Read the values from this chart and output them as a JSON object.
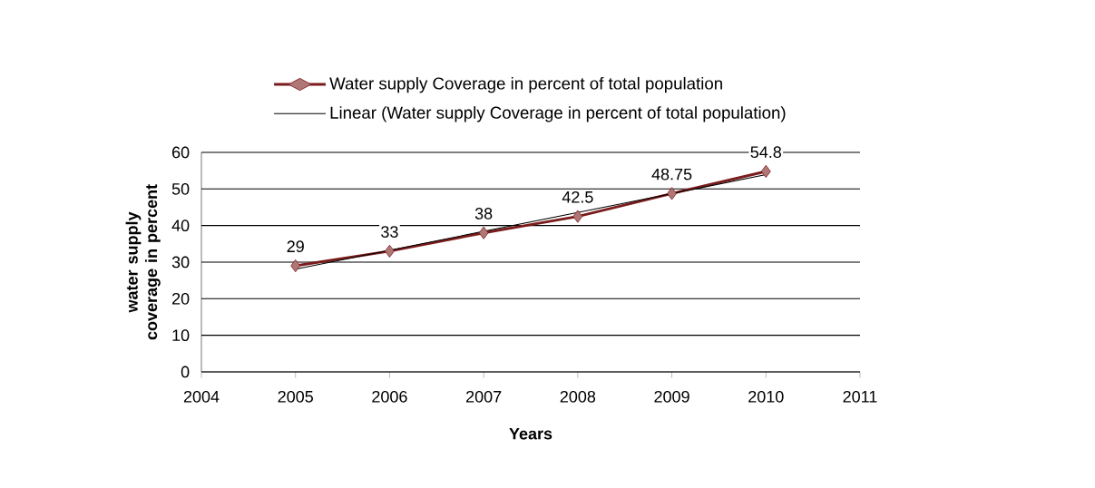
{
  "chart_data": {
    "type": "line",
    "xlabel": "Years",
    "ylabel": "water supply  coverage in percent",
    "x": [
      2005,
      2006,
      2007,
      2008,
      2009,
      2010
    ],
    "series": [
      {
        "name": "Water supply Coverage in percent of  total population",
        "color": "#7b1c1c",
        "marker": "diamond",
        "values": [
          29,
          33,
          38,
          42.5,
          48.75,
          54.8
        ],
        "value_labels": [
          "29",
          "33",
          "38",
          "42.5",
          "48.75",
          "54.8"
        ]
      },
      {
        "name": "Linear (Water supply Coverage in percent of  total population)",
        "type": "line",
        "color": "#000000",
        "marker": "none",
        "x": [
          2005,
          2010
        ],
        "values": [
          28.1,
          53.9
        ]
      }
    ],
    "xlim": [
      2004,
      2011
    ],
    "xticks": [
      2004,
      2005,
      2006,
      2007,
      2008,
      2009,
      2010,
      2011
    ],
    "ylim": [
      0,
      60
    ],
    "yticks": [
      0,
      10,
      20,
      30,
      40,
      50,
      60
    ],
    "grid": "y",
    "legend": "top",
    "line_style": "solid"
  }
}
